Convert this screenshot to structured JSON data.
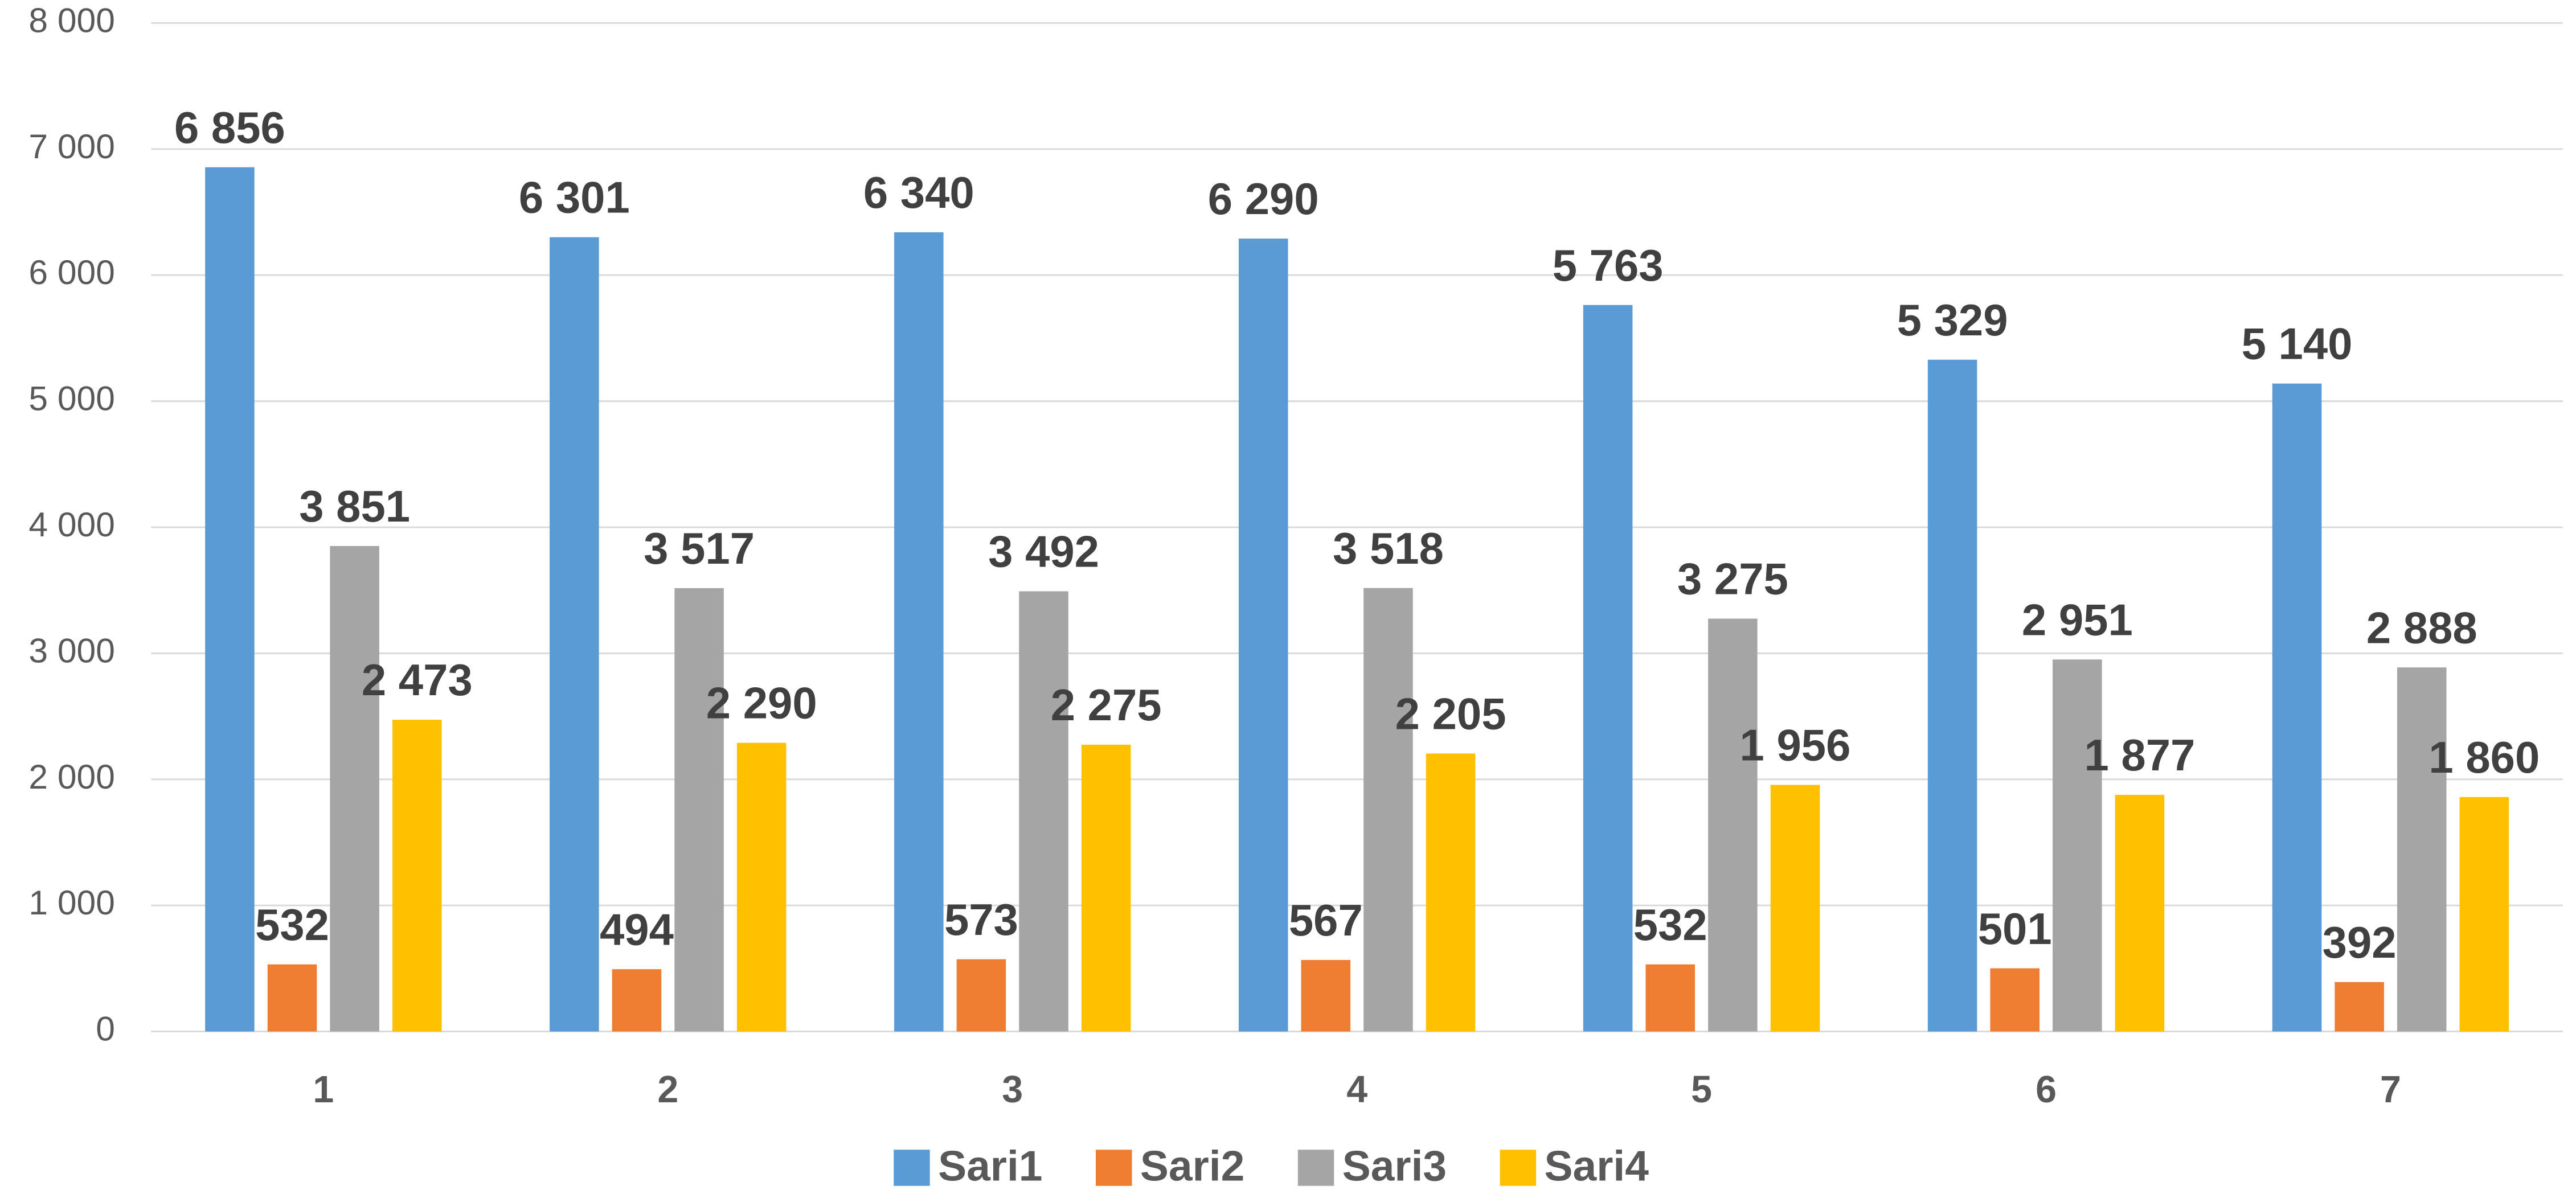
{
  "chart_data": {
    "type": "bar",
    "categories": [
      "1",
      "2",
      "3",
      "4",
      "5",
      "6",
      "7"
    ],
    "series": [
      {
        "name": "Sari1",
        "color": "#5b9bd5",
        "values": [
          6856,
          6301,
          6340,
          6290,
          5763,
          5329,
          5140
        ],
        "value_labels": [
          "6 856",
          "6 301",
          "6 340",
          "6 290",
          "5 763",
          "5 329",
          "5 140"
        ]
      },
      {
        "name": "Sari2",
        "color": "#ed7d31",
        "values": [
          532,
          494,
          573,
          567,
          532,
          501,
          392
        ]
      },
      {
        "name": "Sari3",
        "color": "#a5a5a5",
        "values": [
          3851,
          3517,
          3492,
          3518,
          3275,
          2951,
          2888
        ],
        "value_labels": [
          "3 851",
          "3 517",
          "3 492",
          "3 518",
          "3 275",
          "2 951",
          "2 888"
        ]
      },
      {
        "name": "Sari4",
        "color": "#ffc000",
        "values": [
          2473,
          2290,
          2275,
          2205,
          1956,
          1877,
          1860
        ],
        "value_labels": [
          "2 473",
          "2 290",
          "2 275",
          "2 205",
          "1 956",
          "1 877",
          "1 860"
        ]
      }
    ],
    "ylim": [
      0,
      8000
    ],
    "yticks": [
      0,
      {
        "value": 1000,
        "label": "1 000"
      },
      {
        "value": 2000,
        "label": "2 000"
      },
      {
        "value": 3000,
        "label": "3 000"
      },
      {
        "value": 4000,
        "label": "4 000"
      },
      {
        "value": 5000,
        "label": "5 000"
      },
      {
        "value": 6000,
        "label": "6 000"
      },
      {
        "value": 7000,
        "label": "7 000"
      },
      {
        "value": 8000,
        "label": "8 000"
      }
    ],
    "grid": true,
    "legend": "bottom"
  }
}
